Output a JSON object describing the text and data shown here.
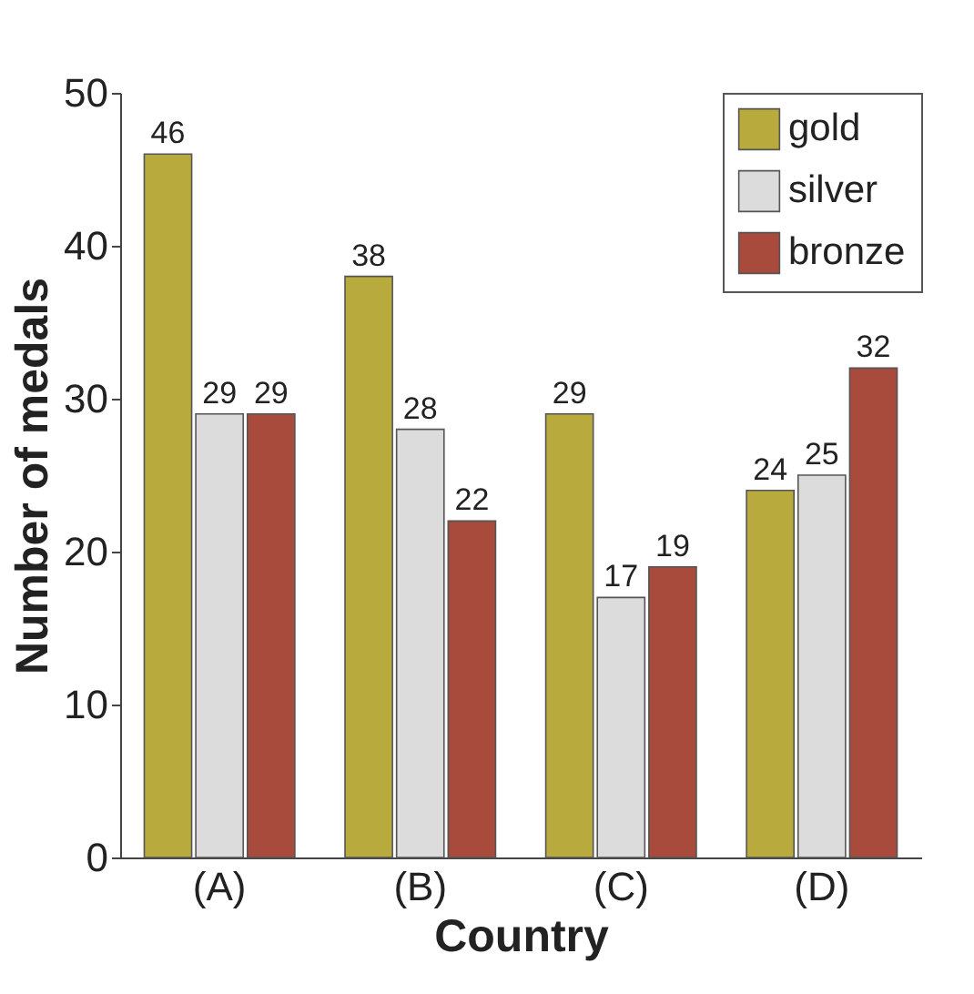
{
  "chart_data": {
    "type": "bar",
    "xlabel": "Country",
    "ylabel": "Number of medals",
    "categories": [
      "(A)",
      "(B)",
      "(C)",
      "(D)"
    ],
    "series": [
      {
        "name": "gold",
        "color": "#b8aa3c",
        "values": [
          46,
          38,
          29,
          24
        ]
      },
      {
        "name": "silver",
        "color": "#dcdcdc",
        "values": [
          29,
          28,
          17,
          25
        ]
      },
      {
        "name": "bronze",
        "color": "#a84a3c",
        "values": [
          29,
          22,
          19,
          32
        ]
      }
    ],
    "ylim": [
      0,
      50
    ],
    "yticks": [
      0,
      10,
      20,
      30,
      40,
      50
    ],
    "data_labels": true,
    "legend": "top right"
  }
}
